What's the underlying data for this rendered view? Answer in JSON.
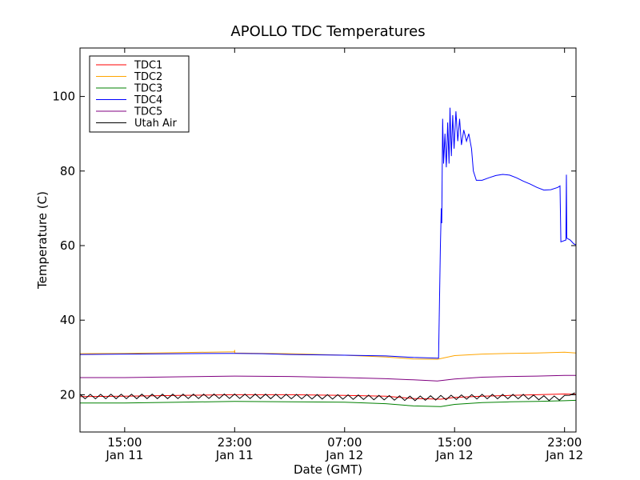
{
  "chart_data": {
    "type": "line",
    "title": "APOLLO TDC Temperatures",
    "xlabel": "Date (GMT)",
    "ylabel": "Temperature (C)",
    "ylim": [
      10,
      113
    ],
    "xlim": [
      "2011-01-11T11:45",
      "2011-01-12T23:50"
    ],
    "grid": false,
    "legend_position": "top-left",
    "yticks": [
      20,
      40,
      60,
      80,
      100
    ],
    "xticks": [
      {
        "time": "2011-01-11T15:00",
        "line1": "15:00",
        "line2": "Jan 11"
      },
      {
        "time": "2011-01-11T23:00",
        "line1": "23:00",
        "line2": "Jan 11"
      },
      {
        "time": "2011-01-12T07:00",
        "line1": "07:00",
        "line2": "Jan 12"
      },
      {
        "time": "2011-01-12T15:00",
        "line1": "15:00",
        "line2": "Jan 12"
      },
      {
        "time": "2011-01-12T23:00",
        "line1": "23:00",
        "line2": "Jan 12"
      }
    ],
    "series": [
      {
        "name": "TDC1",
        "color": "#ff0000",
        "points": [
          [
            "2011-01-11T11:45",
            19.5
          ],
          [
            "2011-01-11T15:00",
            19.6
          ],
          [
            "2011-01-11T19:00",
            19.8
          ],
          [
            "2011-01-11T23:00",
            20.0
          ],
          [
            "2011-01-12T03:00",
            20.0
          ],
          [
            "2011-01-12T07:00",
            19.8
          ],
          [
            "2011-01-12T10:00",
            19.6
          ],
          [
            "2011-01-12T12:00",
            19.0
          ],
          [
            "2011-01-12T14:00",
            18.8
          ],
          [
            "2011-01-12T15:00",
            19.3
          ],
          [
            "2011-01-12T17:00",
            19.6
          ],
          [
            "2011-01-12T19:00",
            19.8
          ],
          [
            "2011-01-12T21:00",
            20.0
          ],
          [
            "2011-01-12T23:00",
            20.2
          ],
          [
            "2011-01-12T23:50",
            20.1
          ]
        ]
      },
      {
        "name": "TDC2",
        "color": "#ffa500",
        "points": [
          [
            "2011-01-11T11:45",
            31.0
          ],
          [
            "2011-01-11T15:00",
            31.1
          ],
          [
            "2011-01-11T19:00",
            31.3
          ],
          [
            "2011-01-11T22:59",
            31.5
          ],
          [
            "2011-01-11T23:00",
            32.0
          ],
          [
            "2011-01-11T23:01",
            31.2
          ],
          [
            "2011-01-12T03:00",
            31.0
          ],
          [
            "2011-01-12T07:00",
            30.6
          ],
          [
            "2011-01-12T10:00",
            30.1
          ],
          [
            "2011-01-12T12:00",
            29.6
          ],
          [
            "2011-01-12T13:45",
            29.5
          ],
          [
            "2011-01-12T15:00",
            30.5
          ],
          [
            "2011-01-12T17:00",
            30.9
          ],
          [
            "2011-01-12T19:00",
            31.1
          ],
          [
            "2011-01-12T21:00",
            31.2
          ],
          [
            "2011-01-12T23:00",
            31.4
          ],
          [
            "2011-01-12T23:50",
            31.2
          ]
        ]
      },
      {
        "name": "TDC3",
        "color": "#008000",
        "points": [
          [
            "2011-01-11T11:45",
            17.8
          ],
          [
            "2011-01-11T15:00",
            17.8
          ],
          [
            "2011-01-11T19:00",
            18.0
          ],
          [
            "2011-01-11T23:00",
            18.2
          ],
          [
            "2011-01-12T03:00",
            18.1
          ],
          [
            "2011-01-12T07:00",
            18.0
          ],
          [
            "2011-01-12T10:00",
            17.6
          ],
          [
            "2011-01-12T12:00",
            17.0
          ],
          [
            "2011-01-12T14:00",
            16.8
          ],
          [
            "2011-01-12T15:00",
            17.4
          ],
          [
            "2011-01-12T17:00",
            17.9
          ],
          [
            "2011-01-12T19:00",
            18.1
          ],
          [
            "2011-01-12T21:00",
            18.2
          ],
          [
            "2011-01-12T23:00",
            18.4
          ],
          [
            "2011-01-12T23:50",
            18.5
          ]
        ]
      },
      {
        "name": "TDC4",
        "color": "#0000ff",
        "points": [
          [
            "2011-01-11T11:45",
            30.8
          ],
          [
            "2011-01-11T15:00",
            30.9
          ],
          [
            "2011-01-11T19:00",
            31.0
          ],
          [
            "2011-01-11T23:00",
            31.1
          ],
          [
            "2011-01-12T01:00",
            31.0
          ],
          [
            "2011-01-12T03:00",
            30.8
          ],
          [
            "2011-01-12T07:00",
            30.6
          ],
          [
            "2011-01-12T10:00",
            30.4
          ],
          [
            "2011-01-12T12:00",
            30.0
          ],
          [
            "2011-01-12T13:50",
            29.8
          ],
          [
            "2011-01-12T13:58",
            60.0
          ],
          [
            "2011-01-12T14:02",
            70.0
          ],
          [
            "2011-01-12T14:04",
            66.0
          ],
          [
            "2011-01-12T14:08",
            94.0
          ],
          [
            "2011-01-12T14:12",
            82.0
          ],
          [
            "2011-01-12T14:18",
            90.0
          ],
          [
            "2011-01-12T14:24",
            81.0
          ],
          [
            "2011-01-12T14:30",
            93.0
          ],
          [
            "2011-01-12T14:36",
            82.0
          ],
          [
            "2011-01-12T14:40",
            97.0
          ],
          [
            "2011-01-12T14:46",
            84.0
          ],
          [
            "2011-01-12T14:52",
            95.0
          ],
          [
            "2011-01-12T14:58",
            86.0
          ],
          [
            "2011-01-12T15:06",
            96.0
          ],
          [
            "2011-01-12T15:14",
            88.0
          ],
          [
            "2011-01-12T15:22",
            94.0
          ],
          [
            "2011-01-12T15:30",
            87.0
          ],
          [
            "2011-01-12T15:40",
            91.0
          ],
          [
            "2011-01-12T15:52",
            88.0
          ],
          [
            "2011-01-12T16:02",
            90.0
          ],
          [
            "2011-01-12T16:14",
            86.0
          ],
          [
            "2011-01-12T16:22",
            80.0
          ],
          [
            "2011-01-12T16:35",
            77.5
          ],
          [
            "2011-01-12T17:00",
            77.5
          ],
          [
            "2011-01-12T17:30",
            78.2
          ],
          [
            "2011-01-12T18:00",
            78.8
          ],
          [
            "2011-01-12T18:30",
            79.1
          ],
          [
            "2011-01-12T19:00",
            78.9
          ],
          [
            "2011-01-12T19:30",
            78.2
          ],
          [
            "2011-01-12T20:00",
            77.3
          ],
          [
            "2011-01-12T20:30",
            76.5
          ],
          [
            "2011-01-12T21:00",
            75.6
          ],
          [
            "2011-01-12T21:30",
            74.9
          ],
          [
            "2011-01-12T22:00",
            75.0
          ],
          [
            "2011-01-12T22:30",
            75.6
          ],
          [
            "2011-01-12T22:40",
            76.0
          ],
          [
            "2011-01-12T22:44",
            61.0
          ],
          [
            "2011-01-12T23:06",
            61.5
          ],
          [
            "2011-01-12T23:08",
            79.0
          ],
          [
            "2011-01-12T23:10",
            62.0
          ],
          [
            "2011-01-12T23:25",
            61.5
          ],
          [
            "2011-01-12T23:40",
            60.5
          ],
          [
            "2011-01-12T23:50",
            60.2
          ]
        ]
      },
      {
        "name": "TDC5",
        "color": "#800080",
        "points": [
          [
            "2011-01-11T11:45",
            24.6
          ],
          [
            "2011-01-11T15:00",
            24.6
          ],
          [
            "2011-01-11T19:00",
            24.8
          ],
          [
            "2011-01-11T23:00",
            25.0
          ],
          [
            "2011-01-12T03:00",
            24.9
          ],
          [
            "2011-01-12T07:00",
            24.6
          ],
          [
            "2011-01-12T10:00",
            24.3
          ],
          [
            "2011-01-12T12:00",
            24.0
          ],
          [
            "2011-01-12T13:45",
            23.7
          ],
          [
            "2011-01-12T15:00",
            24.2
          ],
          [
            "2011-01-12T17:00",
            24.7
          ],
          [
            "2011-01-12T19:00",
            24.9
          ],
          [
            "2011-01-12T21:00",
            25.0
          ],
          [
            "2011-01-12T23:00",
            25.2
          ],
          [
            "2011-01-12T23:50",
            25.2
          ]
        ]
      },
      {
        "name": "Utah Air",
        "color": "#000000",
        "oscillating": true,
        "baseline": [
          [
            "2011-01-11T11:45",
            19.5
          ],
          [
            "2011-01-11T23:00",
            19.6
          ],
          [
            "2011-01-12T07:00",
            19.4
          ],
          [
            "2011-01-12T10:00",
            19.2
          ],
          [
            "2011-01-12T12:00",
            19.0
          ],
          [
            "2011-01-12T14:00",
            19.2
          ],
          [
            "2011-01-12T17:00",
            19.5
          ],
          [
            "2011-01-12T20:00",
            19.5
          ],
          [
            "2011-01-12T22:00",
            19.0
          ],
          [
            "2011-01-12T23:00",
            19.2
          ],
          [
            "2011-01-12T23:20",
            20.5
          ],
          [
            "2011-01-12T23:50",
            19.8
          ]
        ],
        "amplitude": 0.6,
        "period_minutes": 45
      }
    ]
  }
}
